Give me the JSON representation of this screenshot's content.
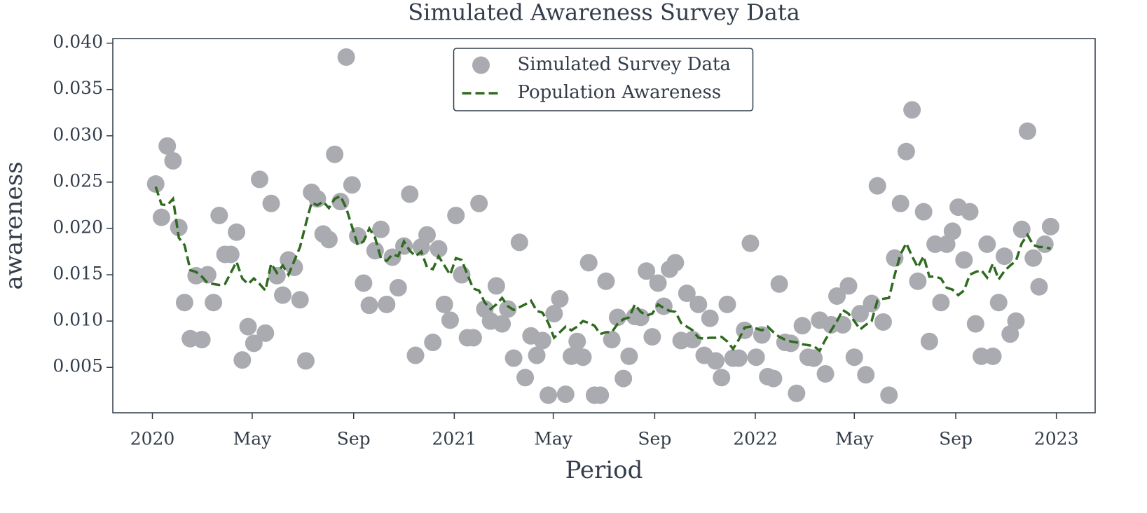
{
  "chart_data": {
    "type": "line",
    "title": "Simulated Awareness Survey Data",
    "xlabel": "Period",
    "ylabel": "awareness",
    "legend": "upper center",
    "grid": false,
    "x": [
      "2020-01-05",
      "2020-01-12",
      "2020-01-19",
      "2020-01-26",
      "2020-02-02",
      "2020-02-09",
      "2020-02-16",
      "2020-02-23",
      "2020-03-01",
      "2020-03-08",
      "2020-03-15",
      "2020-03-22",
      "2020-03-29",
      "2020-04-05",
      "2020-04-12",
      "2020-04-19",
      "2020-04-26",
      "2020-05-03",
      "2020-05-10",
      "2020-05-17",
      "2020-05-24",
      "2020-05-31",
      "2020-06-07",
      "2020-06-14",
      "2020-06-21",
      "2020-06-28",
      "2020-07-05",
      "2020-07-12",
      "2020-07-19",
      "2020-07-26",
      "2020-08-02",
      "2020-08-09",
      "2020-08-16",
      "2020-08-23",
      "2020-08-30",
      "2020-09-06",
      "2020-09-13",
      "2020-09-20",
      "2020-09-27",
      "2020-10-04",
      "2020-10-11",
      "2020-10-18",
      "2020-10-25",
      "2020-11-01",
      "2020-11-08",
      "2020-11-15",
      "2020-11-22",
      "2020-11-29",
      "2020-12-06",
      "2020-12-13",
      "2020-12-20",
      "2020-12-27",
      "2021-01-03",
      "2021-01-10",
      "2021-01-17",
      "2021-01-24",
      "2021-01-31",
      "2021-02-07",
      "2021-02-14",
      "2021-02-21",
      "2021-02-28",
      "2021-03-07",
      "2021-03-14",
      "2021-03-21",
      "2021-03-28",
      "2021-04-04",
      "2021-04-11",
      "2021-04-18",
      "2021-04-25",
      "2021-05-02",
      "2021-05-09",
      "2021-05-16",
      "2021-05-23",
      "2021-05-30",
      "2021-06-06",
      "2021-06-13",
      "2021-06-20",
      "2021-06-27",
      "2021-07-04",
      "2021-07-11",
      "2021-07-18",
      "2021-07-25",
      "2021-08-01",
      "2021-08-08",
      "2021-08-15",
      "2021-08-22",
      "2021-08-29",
      "2021-09-05",
      "2021-09-12",
      "2021-09-19",
      "2021-09-26",
      "2021-10-03",
      "2021-10-10",
      "2021-10-17",
      "2021-10-24",
      "2021-10-31",
      "2021-11-07",
      "2021-11-14",
      "2021-11-21",
      "2021-11-28",
      "2021-12-05",
      "2021-12-12",
      "2021-12-19",
      "2021-12-26",
      "2022-01-02",
      "2022-01-09",
      "2022-01-16",
      "2022-01-23",
      "2022-01-30",
      "2022-02-06",
      "2022-02-13",
      "2022-02-20",
      "2022-02-27",
      "2022-03-06",
      "2022-03-13",
      "2022-03-20",
      "2022-03-27",
      "2022-04-03",
      "2022-04-10",
      "2022-04-17",
      "2022-04-24",
      "2022-05-01",
      "2022-05-08",
      "2022-05-15",
      "2022-05-22",
      "2022-05-29",
      "2022-06-05",
      "2022-06-12",
      "2022-06-19",
      "2022-06-26",
      "2022-07-03",
      "2022-07-10",
      "2022-07-17",
      "2022-07-24",
      "2022-07-31",
      "2022-08-07",
      "2022-08-14",
      "2022-08-21",
      "2022-08-28",
      "2022-09-04",
      "2022-09-11",
      "2022-09-18",
      "2022-09-25",
      "2022-10-02",
      "2022-10-09",
      "2022-10-16",
      "2022-10-23",
      "2022-10-30",
      "2022-11-06",
      "2022-11-13",
      "2022-11-20",
      "2022-11-27",
      "2022-12-04",
      "2022-12-11",
      "2022-12-18",
      "2022-12-25"
    ],
    "series": [
      {
        "name": "Simulated Survey Data",
        "type": "scatter",
        "color": "#a9abb0",
        "values": [
          0.0248,
          0.0212,
          0.0289,
          0.0273,
          0.0201,
          0.012,
          0.0081,
          0.0149,
          0.008,
          0.015,
          0.012,
          0.0214,
          0.0172,
          0.0172,
          0.0196,
          0.0058,
          0.0094,
          0.0076,
          0.0253,
          0.0087,
          0.0227,
          0.0149,
          0.0128,
          0.0166,
          0.0158,
          0.0123,
          0.0057,
          0.0239,
          0.0232,
          0.0194,
          0.0188,
          0.028,
          0.0229,
          0.0385,
          0.0247,
          0.0192,
          0.0141,
          0.0117,
          0.0176,
          0.0199,
          0.0118,
          0.0169,
          0.0136,
          0.0181,
          0.0237,
          0.0063,
          0.018,
          0.0193,
          0.0077,
          0.0178,
          0.0118,
          0.0101,
          0.0214,
          0.015,
          0.0082,
          0.0082,
          0.0227,
          0.0113,
          0.01,
          0.0138,
          0.0097,
          0.0113,
          0.006,
          0.0185,
          0.0039,
          0.0084,
          0.0063,
          0.0079,
          0.002,
          0.0108,
          0.0124,
          0.0021,
          0.0062,
          0.0078,
          0.0061,
          0.0163,
          0.002,
          0.002,
          0.0143,
          0.008,
          0.0104,
          0.0038,
          0.0062,
          0.0105,
          0.0104,
          0.0154,
          0.0083,
          0.0141,
          0.0116,
          0.0156,
          0.0163,
          0.0079,
          0.013,
          0.008,
          0.0118,
          0.0063,
          0.0103,
          0.0057,
          0.0039,
          0.0118,
          0.006,
          0.006,
          0.009,
          0.0184,
          0.0061,
          0.0085,
          0.004,
          0.0038,
          0.014,
          0.0077,
          0.0076,
          0.0022,
          0.0095,
          0.0061,
          0.006,
          0.0101,
          0.0043,
          0.0096,
          0.0127,
          0.0096,
          0.0138,
          0.0061,
          0.0108,
          0.0042,
          0.0119,
          0.0246,
          0.0099,
          0.002,
          0.0168,
          0.0227,
          0.0283,
          0.0328,
          0.0143,
          0.0218,
          0.0078,
          0.0183,
          0.012,
          0.0183,
          0.0197,
          0.0223,
          0.0166,
          0.0218,
          0.0097,
          0.0062,
          0.0183,
          0.0062,
          0.012,
          0.017,
          0.0086,
          0.01,
          0.0199,
          0.0305,
          0.0168,
          0.0137,
          0.0183,
          0.0202
        ]
      },
      {
        "name": "Population Awareness",
        "type": "line",
        "linestyle": "dashed",
        "color": "#2e6a1f",
        "values": [
          0.0245,
          0.0226,
          0.0225,
          0.0232,
          0.019,
          0.0182,
          0.0155,
          0.0153,
          0.0148,
          0.0141,
          0.014,
          0.0139,
          0.014,
          0.0152,
          0.0164,
          0.0146,
          0.014,
          0.0146,
          0.014,
          0.0133,
          0.0162,
          0.0152,
          0.016,
          0.015,
          0.0165,
          0.018,
          0.0205,
          0.0228,
          0.0225,
          0.0229,
          0.0222,
          0.0232,
          0.0235,
          0.0222,
          0.0202,
          0.0182,
          0.0186,
          0.02,
          0.019,
          0.0168,
          0.0165,
          0.0172,
          0.017,
          0.0186,
          0.0176,
          0.017,
          0.0175,
          0.0158,
          0.0156,
          0.017,
          0.016,
          0.015,
          0.0168,
          0.0166,
          0.015,
          0.0135,
          0.0133,
          0.012,
          0.0113,
          0.0118,
          0.0125,
          0.0116,
          0.0112,
          0.0115,
          0.0118,
          0.0122,
          0.0111,
          0.0109,
          0.0098,
          0.0082,
          0.0088,
          0.0094,
          0.009,
          0.0094,
          0.01,
          0.0098,
          0.0095,
          0.0086,
          0.0088,
          0.0088,
          0.0097,
          0.0102,
          0.0104,
          0.0118,
          0.011,
          0.0106,
          0.0108,
          0.0118,
          0.0114,
          0.0111,
          0.011,
          0.0098,
          0.0094,
          0.009,
          0.0082,
          0.0081,
          0.0082,
          0.0082,
          0.0083,
          0.0078,
          0.007,
          0.008,
          0.0093,
          0.0094,
          0.0092,
          0.009,
          0.0094,
          0.0088,
          0.0083,
          0.008,
          0.0078,
          0.0077,
          0.0075,
          0.0074,
          0.0073,
          0.0068,
          0.008,
          0.009,
          0.01,
          0.0112,
          0.0108,
          0.01,
          0.0091,
          0.0096,
          0.01,
          0.0122,
          0.0124,
          0.0125,
          0.015,
          0.0172,
          0.0184,
          0.017,
          0.0158,
          0.017,
          0.0148,
          0.0148,
          0.0146,
          0.0136,
          0.0134,
          0.0128,
          0.0133,
          0.015,
          0.0153,
          0.0155,
          0.0147,
          0.0162,
          0.0145,
          0.0154,
          0.016,
          0.0165,
          0.0184,
          0.0193,
          0.0182,
          0.018,
          0.018,
          0.0178
        ]
      }
    ],
    "xlim": [
      "2019-11-14",
      "2023-02-17"
    ],
    "xticks": [
      {
        "value": "2020-01-01",
        "label": "2020"
      },
      {
        "value": "2020-05-01",
        "label": "May"
      },
      {
        "value": "2020-09-01",
        "label": "Sep"
      },
      {
        "value": "2021-01-01",
        "label": "2021"
      },
      {
        "value": "2021-05-01",
        "label": "May"
      },
      {
        "value": "2021-09-01",
        "label": "Sep"
      },
      {
        "value": "2022-01-01",
        "label": "2022"
      },
      {
        "value": "2022-05-01",
        "label": "May"
      },
      {
        "value": "2022-09-01",
        "label": "Sep"
      },
      {
        "value": "2023-01-01",
        "label": "2023"
      }
    ],
    "ylim": [
      0.0001,
      0.0405
    ],
    "yticks": [
      0.005,
      {
        "value": 0.01,
        "label": "0.010"
      },
      0.015,
      {
        "value": 0.02,
        "label": "0.020"
      },
      0.025,
      {
        "value": 0.03,
        "label": "0.030"
      },
      0.035,
      {
        "value": 0.04,
        "label": "0.040"
      }
    ]
  }
}
